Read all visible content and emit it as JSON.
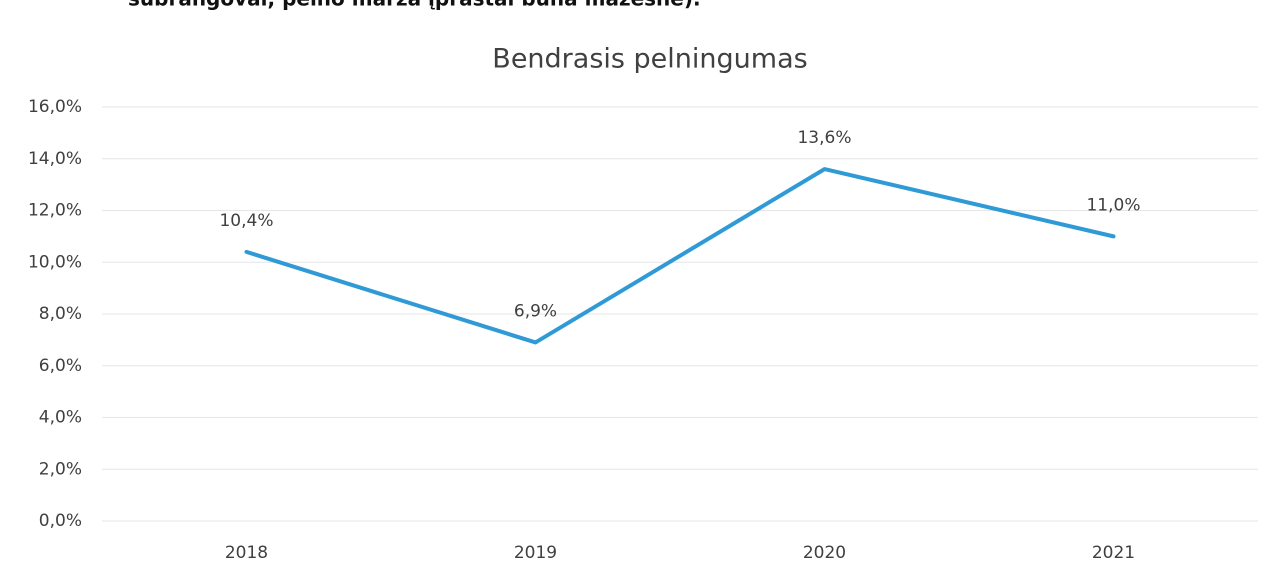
{
  "header_text": "subrangovai, pelno marža įprastai būna mažesnė).",
  "chart_data": {
    "type": "line",
    "title": "Bendrasis pelningumas",
    "categories": [
      "2018",
      "2019",
      "2020",
      "2021"
    ],
    "values": [
      10.4,
      6.9,
      13.6,
      11.0
    ],
    "value_labels": [
      "10,4%",
      "6,9%",
      "13,6%",
      "11,0%"
    ],
    "color": "#2f9ad5",
    "ylim": [
      0,
      16
    ],
    "yticks": [
      {
        "value": 0,
        "label": "0,0%"
      },
      {
        "value": 2,
        "label": "2,0%"
      },
      {
        "value": 4,
        "label": "4,0%"
      },
      {
        "value": 6,
        "label": "6,0%"
      },
      {
        "value": 8,
        "label": "8,0%"
      },
      {
        "value": 10,
        "label": "10,0%"
      },
      {
        "value": 12,
        "label": "12,0%"
      },
      {
        "value": 14,
        "label": "14,0%"
      },
      {
        "value": 16,
        "label": "16,0%"
      }
    ],
    "grid": true
  }
}
